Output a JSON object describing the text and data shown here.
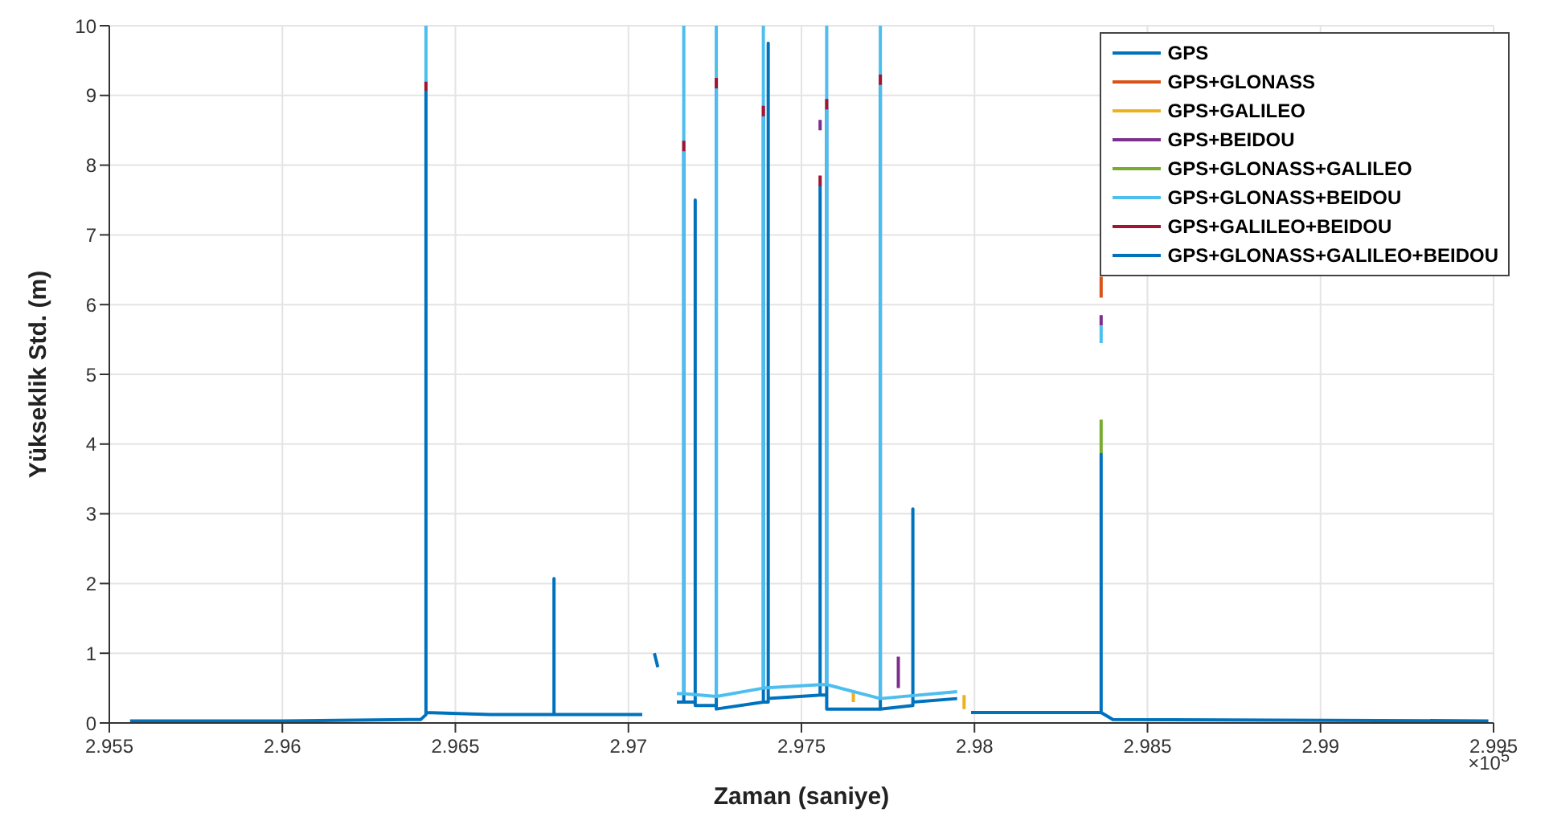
{
  "chart_data": {
    "type": "line",
    "xlabel": "Zaman (saniye)",
    "ylabel": "Yükseklik Std. (m)",
    "annotations": [
      "×10$^{5}$"
    ],
    "x": [
      2.9556,
      2.96,
      2.964,
      2.96415,
      2.96415,
      2.96415,
      2.966,
      2.96785,
      2.96785,
      2.96785,
      2.9704,
      2.9705,
      2.97075,
      2.97085,
      2.971,
      2.9714,
      2.9716,
      2.9716,
      2.9716,
      2.97193,
      2.97193,
      2.97193,
      2.97254,
      2.97254,
      2.97254,
      2.9739,
      2.9739,
      2.9739,
      2.97404,
      2.97404,
      2.97404,
      2.97554,
      2.97554,
      2.97554,
      2.97573,
      2.97573,
      2.97573,
      2.97728,
      2.97728,
      2.97728,
      2.97822,
      2.97822,
      2.97822,
      2.9795,
      2.9797,
      2.9799,
      2.98366,
      2.98366,
      2.98366,
      2.984,
      2.99485
    ],
    "series": [
      {
        "name": "GPS",
        "color": "#0072bd",
        "values": [
          0.03,
          0.03,
          0.05,
          0.12,
          9.07,
          0.15,
          0.12,
          0.12,
          2.07,
          0.12,
          0.12,
          null,
          1.0,
          0.8,
          null,
          0.3,
          0.3,
          8.2,
          0.3,
          0.3,
          7.5,
          0.25,
          0.25,
          9.1,
          0.2,
          0.3,
          8.7,
          0.3,
          0.3,
          9.75,
          0.35,
          0.4,
          7.7,
          0.4,
          0.4,
          8.8,
          0.2,
          0.2,
          9.15,
          0.2,
          0.25,
          3.07,
          0.3,
          0.35,
          null,
          null,
          null,
          null,
          null,
          null,
          null
        ]
      },
      {
        "name": "GPS+GLONASS",
        "color": "#d95319",
        "x": [
          2.98366,
          2.98366
        ],
        "values": [
          6.1,
          6.4
        ]
      },
      {
        "name": "GPS+GALILEO",
        "color": "#edb120",
        "x": [
          2.9765,
          2.9765,
          2.9766,
          2.9797,
          2.9797
        ],
        "values": [
          0.3,
          0.45,
          null,
          0.2,
          0.4
        ]
      },
      {
        "name": "GPS+BEIDOU",
        "color": "#7e2f8e",
        "x": [
          2.97554,
          2.97554,
          2.9756,
          2.9778,
          2.9778,
          2.9779,
          2.98366,
          2.98366
        ],
        "values": [
          8.5,
          8.65,
          null,
          0.5,
          0.95,
          null,
          5.7,
          5.85
        ]
      },
      {
        "name": "GPS+GLONASS+GALILEO",
        "color": "#77ac30",
        "x": [
          2.98366,
          2.98366
        ],
        "values": [
          3.85,
          4.35
        ]
      },
      {
        "name": "GPS+GLONASS+BEIDOU",
        "color": "#4dbeee",
        "x": [
          2.96415,
          2.96415,
          2.965,
          2.9714,
          2.9716,
          2.9716,
          2.9716,
          2.97254,
          2.97254,
          2.97254,
          2.9739,
          2.9739,
          2.9739,
          2.97554,
          2.97573,
          2.97573,
          2.97573,
          2.97728,
          2.97728,
          2.97728,
          2.9795,
          2.9797,
          2.98366,
          2.98366
        ],
        "values": [
          9.2,
          10,
          null,
          0.42,
          0.42,
          10,
          0.42,
          0.38,
          10,
          0.38,
          0.5,
          10,
          0.5,
          0.55,
          0.55,
          10,
          0.55,
          0.35,
          10,
          0.35,
          0.45,
          null,
          5.45,
          5.7
        ]
      },
      {
        "name": "GPS+GALILEO+BEIDOU",
        "color": "#a2142f",
        "x": [
          2.96415,
          2.96415,
          2.9642,
          2.9716,
          2.9716,
          2.9717,
          2.97254,
          2.97254,
          2.9726,
          2.9739,
          2.9739,
          2.974,
          2.97554,
          2.97554,
          2.9756,
          2.97573,
          2.97573,
          2.9758,
          2.97728,
          2.97728
        ],
        "values": [
          9.07,
          9.2,
          null,
          8.2,
          8.35,
          null,
          9.1,
          9.25,
          null,
          8.7,
          8.85,
          null,
          7.7,
          7.85,
          null,
          8.8,
          8.95,
          null,
          9.15,
          9.3
        ]
      },
      {
        "name": "GPS+GLONASS+GALILEO+BEIDOU",
        "color": "#0072bd",
        "values": [
          null,
          null,
          null,
          null,
          null,
          null,
          null,
          null,
          null,
          null,
          null,
          null,
          null,
          null,
          null,
          null,
          null,
          null,
          null,
          null,
          null,
          null,
          null,
          null,
          null,
          null,
          null,
          null,
          null,
          null,
          null,
          null,
          null,
          null,
          null,
          null,
          null,
          null,
          null,
          null,
          null,
          null,
          null,
          null,
          null,
          0.15,
          0.15,
          3.85,
          0.15,
          0.05,
          0.03
        ]
      }
    ],
    "xlim": [
      2.955,
      2.995
    ],
    "xticks": [
      2.955,
      2.96,
      2.965,
      2.97,
      2.975,
      2.98,
      2.985,
      2.99,
      2.995
    ],
    "ylim": [
      0,
      10
    ],
    "yticks": [
      0,
      1,
      2,
      3,
      4,
      5,
      6,
      7,
      8,
      9,
      10
    ],
    "grid": true,
    "legend": "top right",
    "marker": "none",
    "line_style": "solid"
  }
}
